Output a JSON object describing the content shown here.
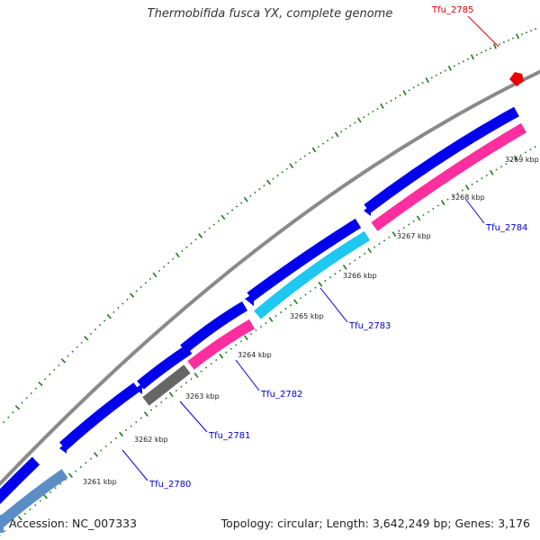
{
  "title": "Thermobifida fusca YX, complete genome",
  "accession_text": "Accession: NC_007333",
  "topology_text": "Topology: circular; Length: 3,642,249 bp; Genes: 3,176",
  "colors": {
    "backbone": "#8a8a8a",
    "forward_gene": "#0000ee",
    "ticks_minor": "#1a7a1a",
    "label_default": "#0000cc",
    "label_highlight": "#dd0000"
  },
  "scale_labels": [
    "3261 kbp",
    "3262 kbp",
    "3263 kbp",
    "3264 kbp",
    "3265 kbp",
    "3266 kbp",
    "3267 kbp",
    "3268 kbp",
    "3269 kbp"
  ],
  "gene_labels": [
    {
      "name": "Tfu_2780",
      "color": "#0000cc"
    },
    {
      "name": "Tfu_2781",
      "color": "#0000cc"
    },
    {
      "name": "Tfu_2782",
      "color": "#0000cc"
    },
    {
      "name": "Tfu_2783",
      "color": "#0000cc"
    },
    {
      "name": "Tfu_2784",
      "color": "#0000cc"
    },
    {
      "name": "Tfu_2785",
      "color": "#dd0000"
    }
  ]
}
